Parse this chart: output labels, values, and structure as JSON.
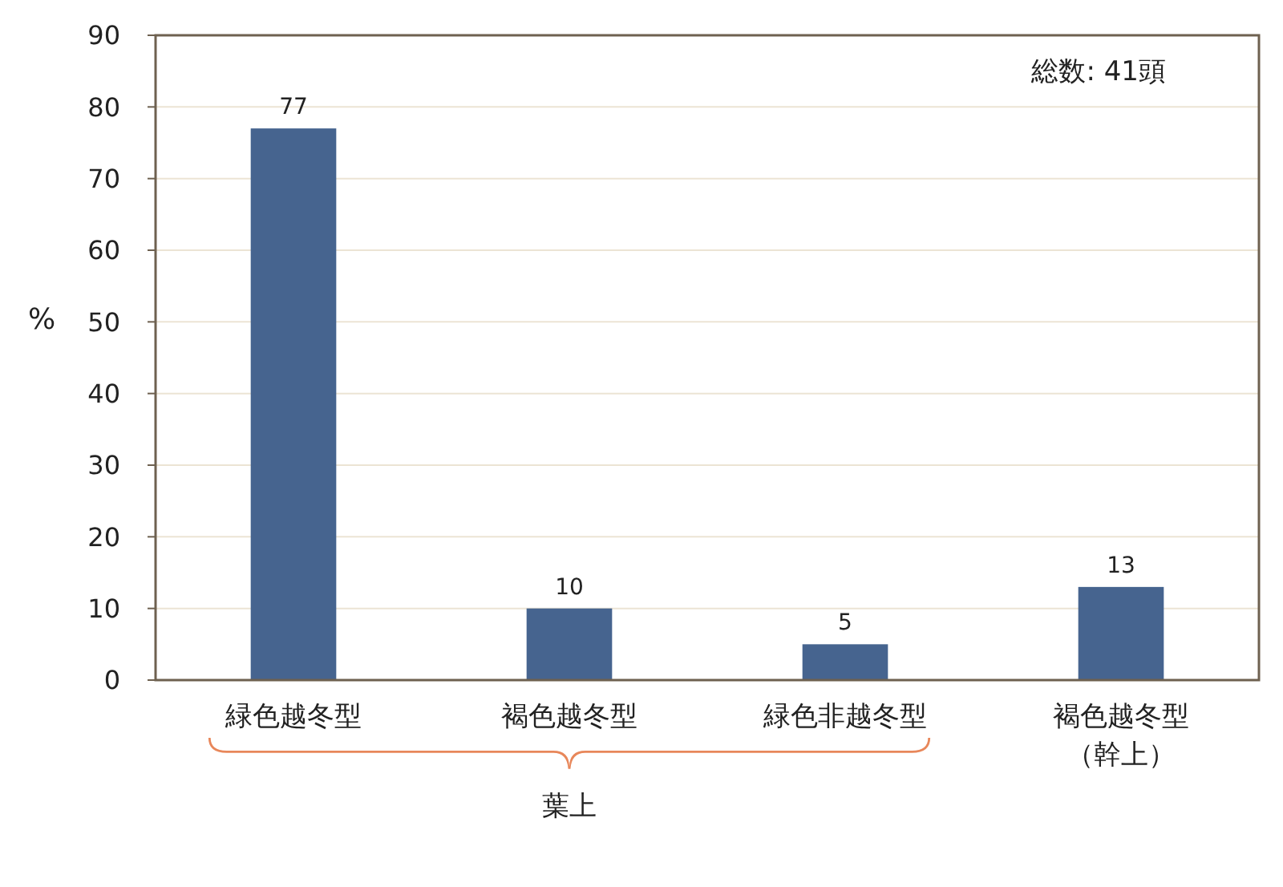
{
  "chart_data": {
    "type": "bar",
    "ylabel": "%",
    "categories": [
      "緑色越冬型",
      "褐色越冬型",
      "緑色非越冬型",
      "褐色越冬型（幹上）"
    ],
    "values": [
      77,
      10,
      5,
      13
    ],
    "color": "#46648f",
    "data_labels": true,
    "ylim": [
      0,
      90
    ],
    "yticks": [
      0,
      10,
      20,
      30,
      40,
      50,
      60,
      70,
      80,
      90
    ],
    "grid": "y",
    "annotations": [
      "総数: 41頭",
      "葉上"
    ]
  }
}
